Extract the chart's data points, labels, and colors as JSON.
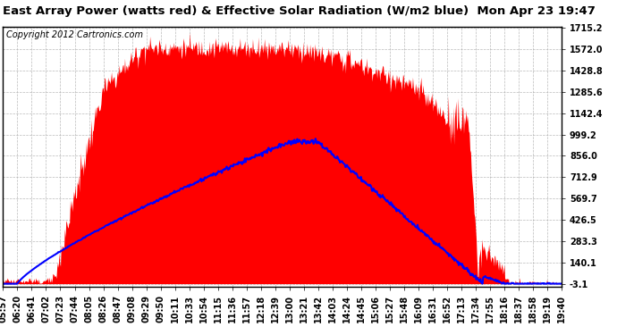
{
  "title": "East Array Power (watts red) & Effective Solar Radiation (W/m2 blue)  Mon Apr 23 19:47",
  "copyright": "Copyright 2012 Cartronics.com",
  "bg_color": "#ffffff",
  "plot_bg_color": "#ffffff",
  "grid_color": "#aaaaaa",
  "ylim_min": -3.1,
  "ylim_max": 1715.2,
  "yticks": [
    1715.2,
    1572.0,
    1428.8,
    1285.6,
    1142.4,
    999.2,
    856.0,
    712.9,
    569.7,
    426.5,
    283.3,
    140.1,
    -3.1
  ],
  "x_labels": [
    "05:57",
    "06:20",
    "06:41",
    "07:02",
    "07:23",
    "07:44",
    "08:05",
    "08:26",
    "08:47",
    "09:08",
    "09:29",
    "09:50",
    "10:11",
    "10:33",
    "10:54",
    "11:15",
    "11:36",
    "11:57",
    "12:18",
    "12:39",
    "13:00",
    "13:21",
    "13:42",
    "14:03",
    "14:24",
    "14:45",
    "15:06",
    "15:27",
    "15:48",
    "16:09",
    "16:31",
    "16:52",
    "17:13",
    "17:34",
    "17:55",
    "18:16",
    "18:37",
    "18:58",
    "19:19",
    "19:40"
  ],
  "red_color": "#ff0000",
  "blue_color": "#0000ff",
  "title_fontsize": 9.5,
  "tick_fontsize": 7,
  "copyright_fontsize": 7
}
